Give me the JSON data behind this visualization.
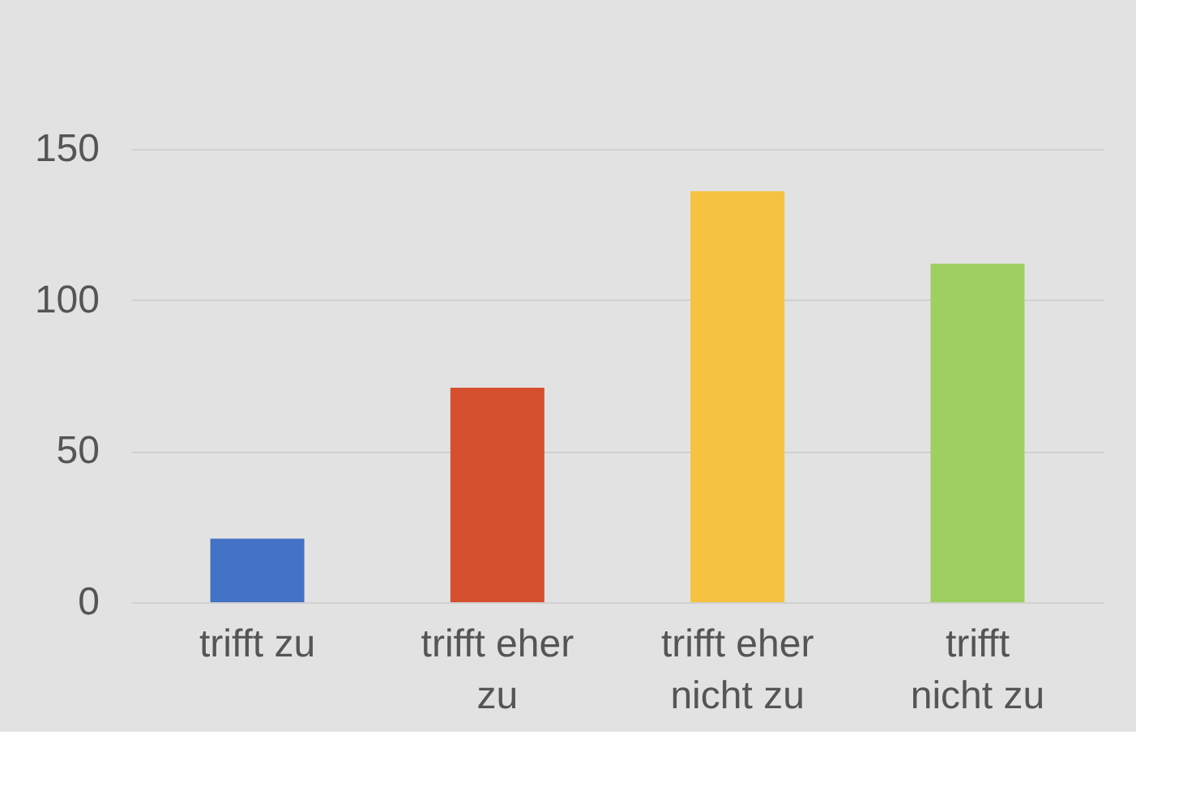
{
  "chart_data": {
    "type": "bar",
    "categories": [
      "trifft zu",
      "trifft eher zu",
      "trifft eher nicht zu",
      "trifft nicht zu"
    ],
    "values": [
      21,
      71,
      136,
      112
    ],
    "colors": [
      "#4472c4",
      "#d4502f",
      "#f5c242",
      "#9fcf62"
    ],
    "ylim": [
      0,
      150
    ],
    "yticks": [
      0,
      50,
      100,
      150
    ],
    "grid": "y",
    "legend": false
  }
}
